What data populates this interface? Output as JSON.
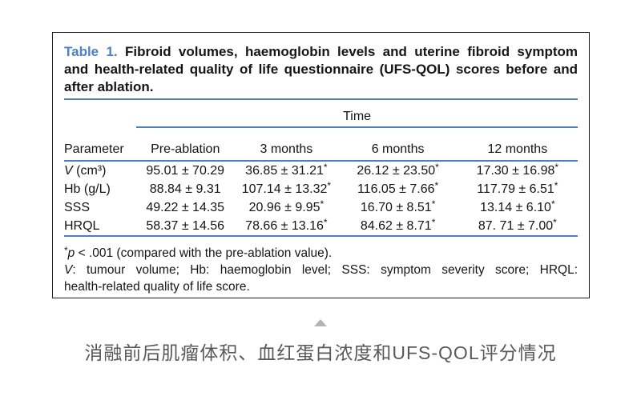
{
  "table": {
    "label": "Table 1.",
    "title_line1": " Fibroid volumes, haemoglobin levels and uterine fibroid symptom",
    "title_line2": "and health-related quality of life questionnaire (UFS-QOL) scores before and",
    "title_line3": "after ablation.",
    "time_header": "Time",
    "columns": [
      "Parameter",
      "Pre-ablation",
      "3 months",
      "6 months",
      "12 months"
    ],
    "rows": [
      {
        "param_italic": "V",
        "param_rest": " (cm³)",
        "cells": [
          {
            "v": "95.01 ± 70.29",
            "s": ""
          },
          {
            "v": "36.85 ± 31.21",
            "s": "*"
          },
          {
            "v": "26.12 ± 23.50",
            "s": "*"
          },
          {
            "v": "17.30 ± 16.98",
            "s": "*"
          }
        ]
      },
      {
        "param_italic": "",
        "param_rest": "Hb (g/L)",
        "cells": [
          {
            "v": "88.84 ± 9.31",
            "s": ""
          },
          {
            "v": "107.14 ± 13.32",
            "s": "*"
          },
          {
            "v": "116.05 ± 7.66",
            "s": "*"
          },
          {
            "v": "117.79 ± 6.51",
            "s": "*"
          }
        ]
      },
      {
        "param_italic": "",
        "param_rest": "SSS",
        "cells": [
          {
            "v": "49.22 ± 14.35",
            "s": ""
          },
          {
            "v": "20.96 ± 9.95",
            "s": "*"
          },
          {
            "v": "16.70 ± 8.51",
            "s": "*"
          },
          {
            "v": "13.14 ± 6.10",
            "s": "*"
          }
        ]
      },
      {
        "param_italic": "",
        "param_rest": "HRQL",
        "cells": [
          {
            "v": "58.37 ± 14.56",
            "s": ""
          },
          {
            "v": "78.66 ± 13.16",
            "s": "*"
          },
          {
            "v": "84.62 ± 8.71",
            "s": "*"
          },
          {
            "v": "87. 71 ± 7.00",
            "s": "*"
          }
        ]
      }
    ]
  },
  "footnotes": {
    "sig": {
      "sup": "*",
      "italic": "p",
      "rest": " < .001 (compared with the pre-ablation value)."
    },
    "abbr": {
      "italic": "V",
      "line1_rest": ": tumour volume; Hb: haemoglobin level; SSS: symptom severity score; HRQL:",
      "line2": "health-related quality of life score."
    }
  },
  "caption": {
    "text": "消融前后肌瘤体积、血红蛋白浓度和UFS-QOL评分情况"
  },
  "icons": {
    "triangle": "collapse-triangle-icon"
  },
  "colors": {
    "rule_blue": "#4d7ebf",
    "table_label_blue": "#4e81c0",
    "caption_gray": "#595959",
    "triangle_gray": "#b4b4b4"
  }
}
